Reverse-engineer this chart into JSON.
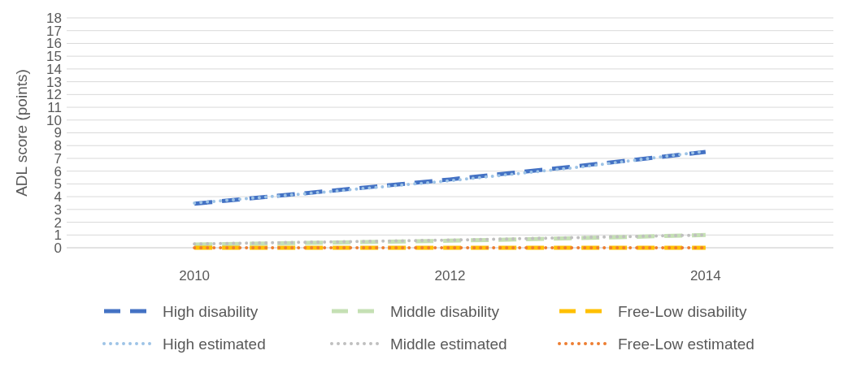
{
  "chart_data": {
    "type": "line",
    "ylabel": "ADL score  (points)",
    "x": [
      2010,
      2011,
      2012,
      2013,
      2014
    ],
    "xlim": [
      2009,
      2015
    ],
    "xticks": [
      2010,
      2012,
      2014
    ],
    "ylim": [
      0,
      18
    ],
    "yticks": [
      0,
      1,
      2,
      3,
      4,
      5,
      6,
      7,
      8,
      9,
      10,
      11,
      12,
      13,
      14,
      15,
      16,
      17,
      18
    ],
    "grid": "y",
    "legend": "bottom",
    "series": [
      {
        "name": "High disability",
        "color": "#4472c4",
        "line_style": "dashed",
        "values": [
          3.45,
          4.4,
          5.35,
          6.4,
          7.5
        ]
      },
      {
        "name": "Middle disability",
        "color": "#c5e0b4",
        "line_style": "dashed",
        "values": [
          0.25,
          0.4,
          0.55,
          0.75,
          1.0
        ]
      },
      {
        "name": "Free-Low disability",
        "color": "#ffc000",
        "line_style": "dashed",
        "values": [
          0,
          0,
          0,
          0,
          0
        ]
      },
      {
        "name": "High estimated",
        "color": "#9dc3e6",
        "line_style": "dotted",
        "values": [
          3.5,
          4.35,
          5.25,
          6.3,
          7.55
        ]
      },
      {
        "name": "Middle estimated",
        "color": "#bfbfbf",
        "line_style": "dotted",
        "values": [
          0.3,
          0.45,
          0.6,
          0.8,
          1.0
        ]
      },
      {
        "name": "Free-Low estimated",
        "color": "#ed7d31",
        "line_style": "dotted",
        "values": [
          0,
          0,
          0,
          0,
          0
        ]
      }
    ]
  }
}
